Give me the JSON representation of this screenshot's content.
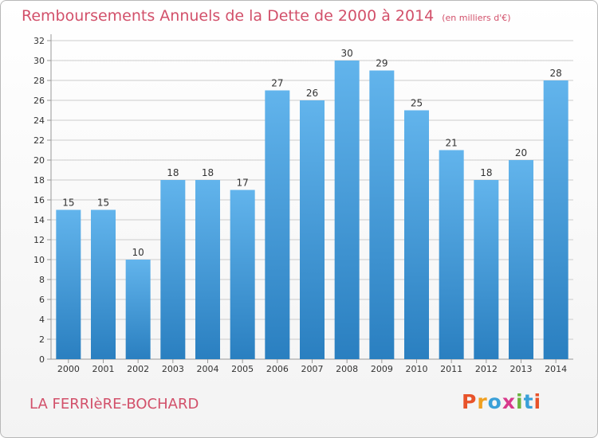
{
  "header": {
    "title": "Remboursements Annuels de la Dette de 2000 à 2014",
    "unit": "(en milliers d'€)"
  },
  "footer": {
    "commune": "LA FERRIèRE-BOCHARD",
    "brand": "Proxiti"
  },
  "colors": {
    "title": "#d2506a",
    "bar_top": "#62b4ec",
    "bar_bottom": "#2a7fc0",
    "grid": "#cccccc"
  },
  "chart_data": {
    "type": "bar",
    "categories": [
      "2000",
      "2001",
      "2002",
      "2003",
      "2004",
      "2005",
      "2006",
      "2007",
      "2008",
      "2009",
      "2010",
      "2011",
      "2012",
      "2013",
      "2014"
    ],
    "values": [
      15,
      15,
      10,
      18,
      18,
      17,
      27,
      26,
      30,
      29,
      25,
      21,
      18,
      20,
      28
    ],
    "ylim": [
      0,
      32
    ],
    "yticks": [
      0,
      2,
      4,
      6,
      8,
      10,
      12,
      14,
      16,
      18,
      20,
      22,
      24,
      26,
      28,
      30,
      32
    ],
    "grid": true,
    "data_labels": true
  }
}
